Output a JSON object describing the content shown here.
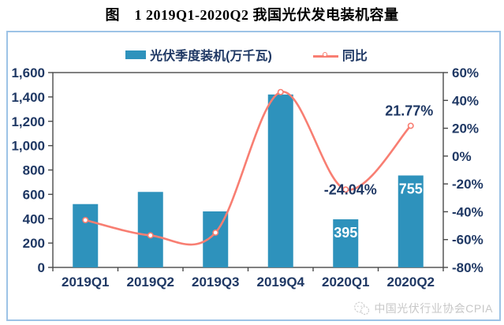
{
  "title": "图　1 2019Q1-2020Q2 我国光伏发电装机容量",
  "legend": [
    {
      "label": "光伏季度装机(万千瓦)",
      "marker": "bar-swatch",
      "color": "#2E92BC"
    },
    {
      "label": "同比",
      "marker": "line-marker",
      "color": "#F87E72"
    }
  ],
  "colors": {
    "bar": "#2E92BC",
    "line": "#F87E72",
    "axis_text": "#1F3864",
    "axis_frame": "#4a4a4a",
    "frame_border": "#9DC3E6",
    "bar_value_label": "#ffffff",
    "line_value_label": "#1F3864",
    "footer_text": "#c7c7c7"
  },
  "chart_data": {
    "type": "bar+line",
    "title": "图 1 2019Q1-2020Q2 我国光伏发电装机容量",
    "categories": [
      "2019Q1",
      "2019Q2",
      "2019Q3",
      "2019Q4",
      "2020Q1",
      "2020Q2"
    ],
    "series": [
      {
        "name": "光伏季度装机(万千瓦)",
        "type": "bar",
        "axis": "left",
        "color": "#2E92BC",
        "values": [
          520,
          620,
          460,
          1420,
          395,
          755
        ],
        "value_labels": {
          "4": "395",
          "5": "755"
        }
      },
      {
        "name": "同比",
        "type": "line",
        "axis": "right",
        "color": "#F87E72",
        "smooth": true,
        "values": [
          -46,
          -57,
          -55,
          46,
          -24.04,
          21.77
        ],
        "value_labels": {
          "4": "-24.04%",
          "5": "21.77%"
        }
      }
    ],
    "left_axis": {
      "min": 0,
      "max": 1600,
      "step": 200,
      "labels": [
        "0",
        "200",
        "400",
        "600",
        "800",
        "1,000",
        "1,200",
        "1,400",
        "1,600"
      ]
    },
    "right_axis": {
      "min": -80,
      "max": 60,
      "step": 20,
      "labels": [
        "-80%",
        "-60%",
        "-40%",
        "-20%",
        "0%",
        "20%",
        "40%",
        "60%"
      ]
    },
    "grid": false,
    "legend_position": "top"
  },
  "footer": {
    "icon": "wechat-icon",
    "source": "中国光伏行业协会CPIA"
  }
}
